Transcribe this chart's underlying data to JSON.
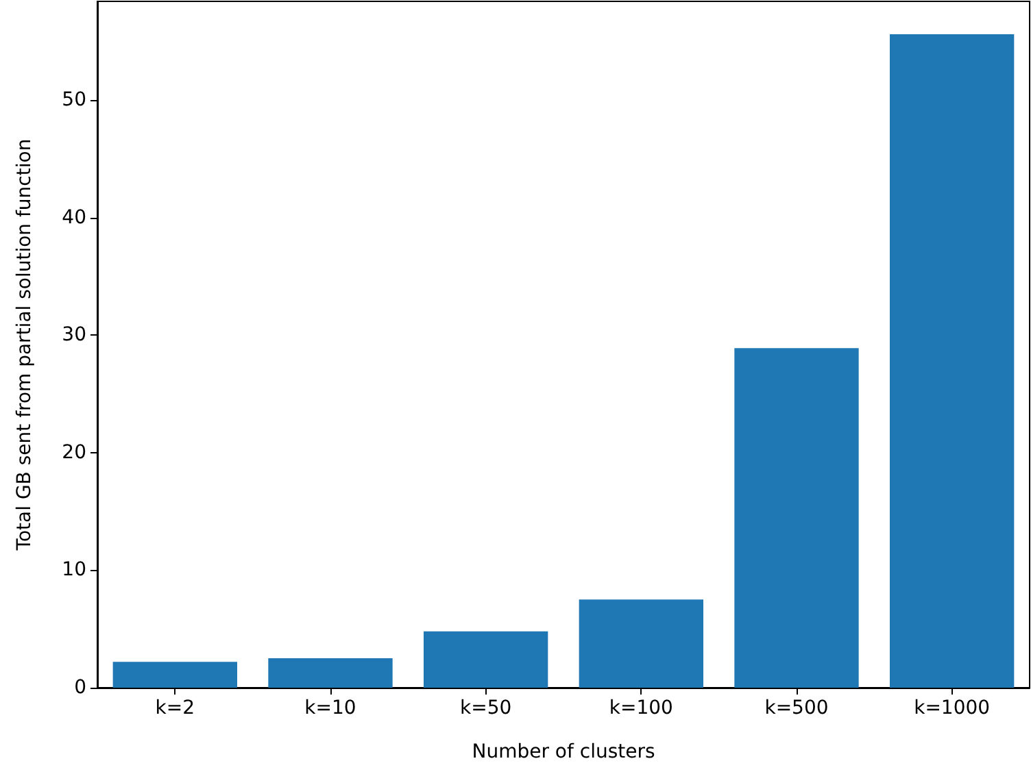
{
  "chart_data": {
    "type": "bar",
    "xlabel": "Number of clusters",
    "ylabel": "Total GB sent from partial solution function",
    "categories": [
      "k=2",
      "k=10",
      "k=50",
      "k=100",
      "k=500",
      "k=1000"
    ],
    "values": [
      2.2,
      2.5,
      4.8,
      7.5,
      28.9,
      55.6
    ],
    "color": "#1f77b4",
    "ylim": [
      0,
      58.4
    ],
    "yticks": [
      0,
      10,
      20,
      30,
      40,
      50
    ],
    "grid": false
  }
}
